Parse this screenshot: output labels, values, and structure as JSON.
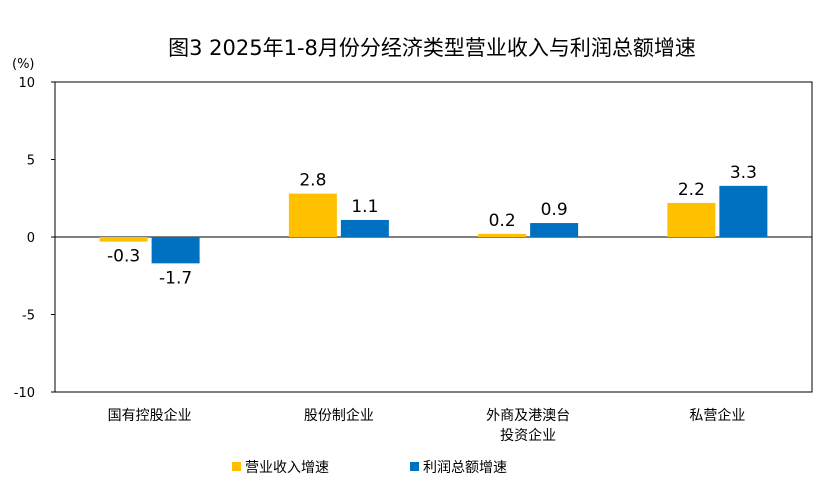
{
  "chart_data": {
    "type": "bar",
    "title": "图3 2025年1-8月份分经济类型营业收入与利润总额增速",
    "ylabel": "(%)",
    "xlabel": "",
    "ylim": [
      -10,
      10
    ],
    "yticks": [
      10,
      5,
      0,
      -5,
      -10
    ],
    "categories": [
      [
        "国有控股企业"
      ],
      [
        "股份制企业"
      ],
      [
        "外商及港澳台",
        "投资企业"
      ],
      [
        "私营企业"
      ]
    ],
    "series": [
      {
        "name": "营业收入增速",
        "color": "#FFC000",
        "values": [
          -0.3,
          2.8,
          0.2,
          2.2
        ]
      },
      {
        "name": "利润总额增速",
        "color": "#0070C0",
        "values": [
          -1.7,
          1.1,
          0.9,
          3.3
        ]
      }
    ],
    "legend_position": "bottom",
    "grid": false
  }
}
